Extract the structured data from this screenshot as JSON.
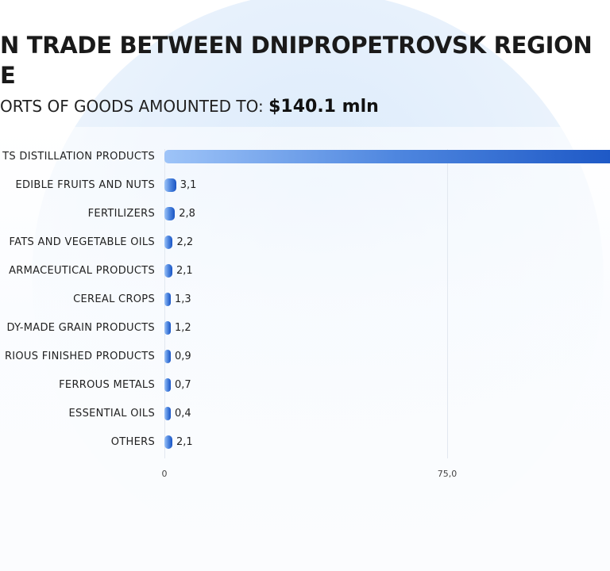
{
  "title_line1": "N TRADE BETWEEN DNIPROPETROVSK REGION",
  "title_line2": "E",
  "subtitle_prefix": "ORTS OF GOODS AMOUNTED TO:",
  "subtitle_value": "$140.1 mln",
  "chart_data": {
    "type": "bar",
    "orientation": "horizontal",
    "categories": [
      "TS DISTILLATION PRODUCTS",
      "EDIBLE FRUITS AND NUTS",
      "FERTILIZERS",
      "FATS AND VEGETABLE OILS",
      "ARMACEUTICAL PRODUCTS",
      "CEREAL CROPS",
      "DY-MADE GRAIN PRODUCTS",
      "RIOUS FINISHED PRODUCTS",
      "FERROUS METALS",
      "ESSENTIAL OILS",
      "OTHERS"
    ],
    "values": [
      123.3,
      3.1,
      2.8,
      2.2,
      2.1,
      1.3,
      1.2,
      0.9,
      0.7,
      0.4,
      2.1
    ],
    "value_labels": [
      "",
      "3,1",
      "2,8",
      "2,2",
      "2,1",
      "1,3",
      "1,2",
      "0,9",
      "0,7",
      "0,4",
      "2,1"
    ],
    "xticks": [
      0,
      75
    ],
    "xtick_labels": [
      "0",
      "75,0"
    ],
    "grid": true,
    "colors": {
      "bar_start": "#9ec4f8",
      "bar_end": "#1a55c4"
    }
  }
}
